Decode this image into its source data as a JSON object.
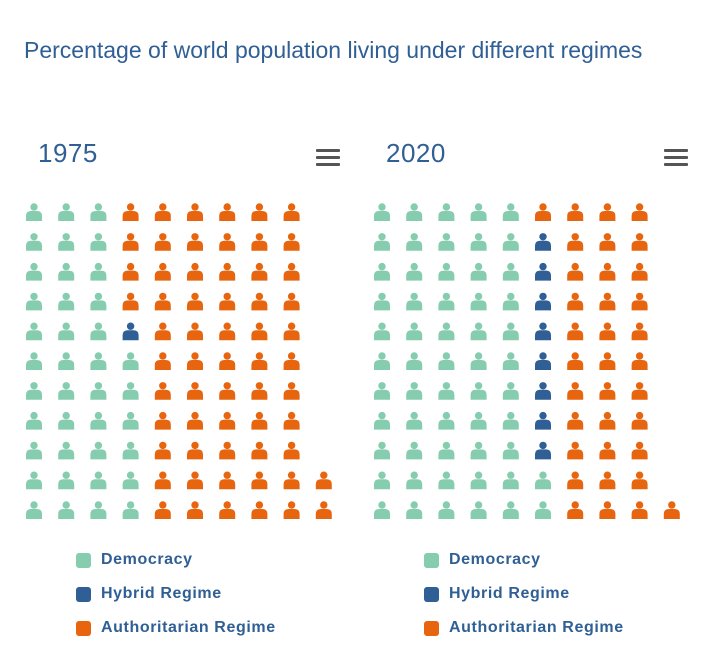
{
  "title": "Percentage of world population living under different regimes",
  "colors": {
    "democracy": "#86cdb0",
    "hybrid": "#2f5f94",
    "authoritarian": "#e8650f"
  },
  "chart_data": [
    {
      "type": "waffle",
      "year": "1975",
      "categories": [
        "Democracy",
        "Hybrid Regime",
        "Authoritarian Regime"
      ],
      "columns": [
        [
          "democracy",
          "democracy",
          "democracy",
          "democracy",
          "democracy",
          "democracy",
          "democracy",
          "democracy",
          "democracy",
          "democracy",
          "democracy"
        ],
        [
          "democracy",
          "democracy",
          "democracy",
          "democracy",
          "democracy",
          "democracy",
          "democracy",
          "democracy",
          "democracy",
          "democracy",
          "democracy"
        ],
        [
          "democracy",
          "democracy",
          "democracy",
          "democracy",
          "democracy",
          "democracy",
          "democracy",
          "democracy",
          "democracy",
          "democracy",
          "democracy"
        ],
        [
          "democracy",
          "democracy",
          "democracy",
          "democracy",
          "democracy",
          "democracy",
          "hybrid",
          "authoritarian",
          "authoritarian",
          "authoritarian",
          "authoritarian"
        ],
        [
          "authoritarian",
          "authoritarian",
          "authoritarian",
          "authoritarian",
          "authoritarian",
          "authoritarian",
          "authoritarian",
          "authoritarian",
          "authoritarian",
          "authoritarian",
          "authoritarian"
        ],
        [
          "authoritarian",
          "authoritarian",
          "authoritarian",
          "authoritarian",
          "authoritarian",
          "authoritarian",
          "authoritarian",
          "authoritarian",
          "authoritarian",
          "authoritarian",
          "authoritarian"
        ],
        [
          "authoritarian",
          "authoritarian",
          "authoritarian",
          "authoritarian",
          "authoritarian",
          "authoritarian",
          "authoritarian",
          "authoritarian",
          "authoritarian",
          "authoritarian",
          "authoritarian"
        ],
        [
          "authoritarian",
          "authoritarian",
          "authoritarian",
          "authoritarian",
          "authoritarian",
          "authoritarian",
          "authoritarian",
          "authoritarian",
          "authoritarian",
          "authoritarian",
          "authoritarian"
        ],
        [
          "authoritarian",
          "authoritarian",
          "authoritarian",
          "authoritarian",
          "authoritarian",
          "authoritarian",
          "authoritarian",
          "authoritarian",
          "authoritarian",
          "authoritarian",
          "authoritarian"
        ],
        [
          "authoritarian",
          "authoritarian"
        ]
      ],
      "counts": {
        "Democracy": 39,
        "Hybrid Regime": 1,
        "Authoritarian Regime": 61
      }
    },
    {
      "type": "waffle",
      "year": "2020",
      "categories": [
        "Democracy",
        "Hybrid Regime",
        "Authoritarian Regime"
      ],
      "columns": [
        [
          "democracy",
          "democracy",
          "democracy",
          "democracy",
          "democracy",
          "democracy",
          "democracy",
          "democracy",
          "democracy",
          "democracy",
          "democracy"
        ],
        [
          "democracy",
          "democracy",
          "democracy",
          "democracy",
          "democracy",
          "democracy",
          "democracy",
          "democracy",
          "democracy",
          "democracy",
          "democracy"
        ],
        [
          "democracy",
          "democracy",
          "democracy",
          "democracy",
          "democracy",
          "democracy",
          "democracy",
          "democracy",
          "democracy",
          "democracy",
          "democracy"
        ],
        [
          "democracy",
          "democracy",
          "democracy",
          "democracy",
          "democracy",
          "democracy",
          "democracy",
          "democracy",
          "democracy",
          "democracy",
          "democracy"
        ],
        [
          "democracy",
          "democracy",
          "democracy",
          "democracy",
          "democracy",
          "democracy",
          "democracy",
          "democracy",
          "democracy",
          "democracy",
          "democracy"
        ],
        [
          "democracy",
          "democracy",
          "hybrid",
          "hybrid",
          "hybrid",
          "hybrid",
          "hybrid",
          "hybrid",
          "hybrid",
          "hybrid",
          "authoritarian"
        ],
        [
          "authoritarian",
          "authoritarian",
          "authoritarian",
          "authoritarian",
          "authoritarian",
          "authoritarian",
          "authoritarian",
          "authoritarian",
          "authoritarian",
          "authoritarian",
          "authoritarian"
        ],
        [
          "authoritarian",
          "authoritarian",
          "authoritarian",
          "authoritarian",
          "authoritarian",
          "authoritarian",
          "authoritarian",
          "authoritarian",
          "authoritarian",
          "authoritarian",
          "authoritarian"
        ],
        [
          "authoritarian",
          "authoritarian",
          "authoritarian",
          "authoritarian",
          "authoritarian",
          "authoritarian",
          "authoritarian",
          "authoritarian",
          "authoritarian",
          "authoritarian",
          "authoritarian"
        ],
        [
          "authoritarian"
        ]
      ],
      "counts": {
        "Democracy": 57,
        "Hybrid Regime": 8,
        "Authoritarian Regime": 35
      }
    }
  ],
  "legend": [
    {
      "key": "democracy",
      "label": "Democracy"
    },
    {
      "key": "hybrid",
      "label": "Hybrid Regime"
    },
    {
      "key": "authoritarian",
      "label": "Authoritarian Regime"
    }
  ],
  "menu_icon": "hamburger-menu-icon"
}
